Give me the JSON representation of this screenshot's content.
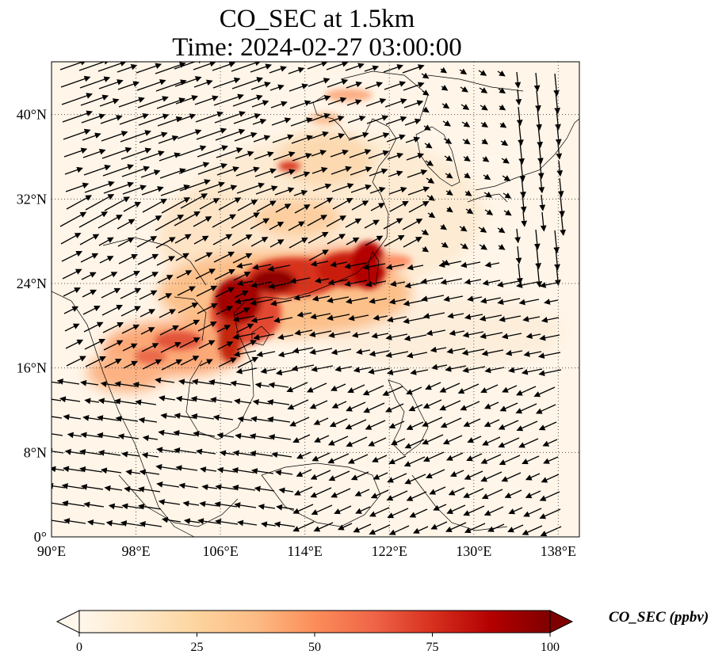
{
  "title": {
    "line1": "CO_SEC at 1.5km",
    "line2": "Time: 2024-02-27 03:00:00"
  },
  "map": {
    "extent": {
      "lon": [
        90,
        140
      ],
      "lat": [
        0,
        45
      ]
    },
    "lon_ticks": [
      {
        "value": 90,
        "label": "90°E"
      },
      {
        "value": 98,
        "label": "98°E"
      },
      {
        "value": 106,
        "label": "106°E"
      },
      {
        "value": 114,
        "label": "114°E"
      },
      {
        "value": 122,
        "label": "122°E"
      },
      {
        "value": 130,
        "label": "130°E"
      },
      {
        "value": 138,
        "label": "138°E"
      }
    ],
    "lat_ticks": [
      {
        "value": 0,
        "label": "0°"
      },
      {
        "value": 8,
        "label": "8°N"
      },
      {
        "value": 16,
        "label": "16°N"
      },
      {
        "value": 24,
        "label": "24°N"
      },
      {
        "value": 32,
        "label": "32°N"
      },
      {
        "value": 40,
        "label": "40°N"
      }
    ],
    "gridlines": true
  },
  "colorbar": {
    "label": "CO_SEC (ppbv)",
    "ticks": [
      {
        "value": 0,
        "label": "0"
      },
      {
        "value": 25,
        "label": "25"
      },
      {
        "value": 50,
        "label": "50"
      },
      {
        "value": 75,
        "label": "75"
      },
      {
        "value": 100,
        "label": "100"
      }
    ],
    "range": [
      0,
      100
    ],
    "extend": "both",
    "colormap": "OrRd",
    "colors": [
      "#fff7ec",
      "#fee8c8",
      "#fdd49e",
      "#fdbb84",
      "#fc8d59",
      "#ef6548",
      "#d7301f",
      "#b30000",
      "#7f0000"
    ]
  }
}
